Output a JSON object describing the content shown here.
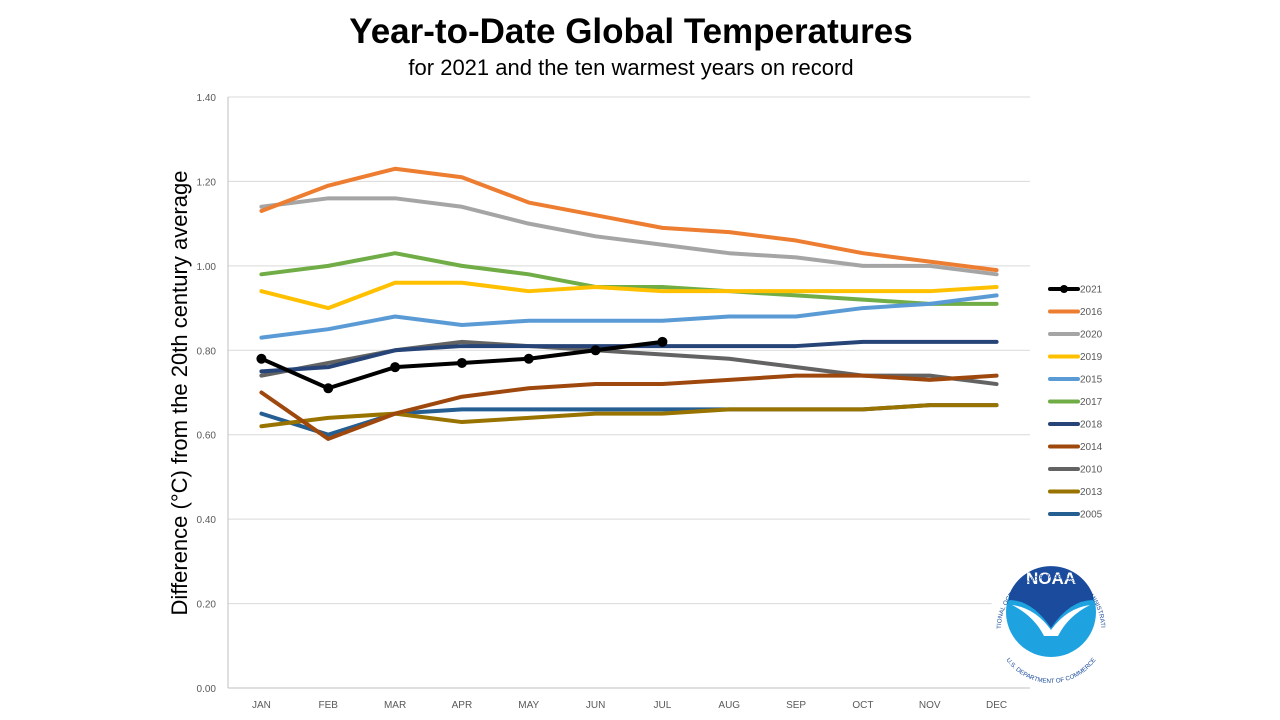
{
  "chart_data": {
    "type": "line",
    "title": "Year-to-Date Global Temperatures",
    "subtitle": "for 2021 and the ten warmest years on record",
    "xlabel": "",
    "ylabel": "Difference (°C) from the 20th century average",
    "ylim": [
      0,
      1.4
    ],
    "yticks": [
      "0.00",
      "0.20",
      "0.40",
      "0.60",
      "0.80",
      "1.00",
      "1.20",
      "1.40"
    ],
    "ytick_values": [
      0,
      0.2,
      0.4,
      0.6,
      0.8,
      1.0,
      1.2,
      1.4
    ],
    "grid": true,
    "legend_position": "right",
    "categories": [
      "JAN",
      "FEB",
      "MAR",
      "APR",
      "MAY",
      "JUN",
      "JUL",
      "AUG",
      "SEP",
      "OCT",
      "NOV",
      "DEC"
    ],
    "series": [
      {
        "name": "2021",
        "color": "#000000",
        "markers": true,
        "values": [
          0.78,
          0.71,
          0.76,
          0.77,
          0.78,
          0.8,
          0.82
        ]
      },
      {
        "name": "2016",
        "color": "#ED7D31",
        "values": [
          1.13,
          1.19,
          1.23,
          1.21,
          1.15,
          1.12,
          1.09,
          1.08,
          1.06,
          1.03,
          1.01,
          0.99
        ]
      },
      {
        "name": "2020",
        "color": "#A5A5A5",
        "values": [
          1.14,
          1.16,
          1.16,
          1.14,
          1.1,
          1.07,
          1.05,
          1.03,
          1.02,
          1.0,
          1.0,
          0.98
        ]
      },
      {
        "name": "2019",
        "color": "#FFC000",
        "values": [
          0.94,
          0.9,
          0.96,
          0.96,
          0.94,
          0.95,
          0.94,
          0.94,
          0.94,
          0.94,
          0.94,
          0.95
        ]
      },
      {
        "name": "2015",
        "color": "#5B9BD5",
        "values": [
          0.83,
          0.85,
          0.88,
          0.86,
          0.87,
          0.87,
          0.87,
          0.88,
          0.88,
          0.9,
          0.91,
          0.93
        ]
      },
      {
        "name": "2017",
        "color": "#70AD47",
        "values": [
          0.98,
          1.0,
          1.03,
          1.0,
          0.98,
          0.95,
          0.95,
          0.94,
          0.93,
          0.92,
          0.91,
          0.91
        ]
      },
      {
        "name": "2018",
        "color": "#264478",
        "values": [
          0.75,
          0.76,
          0.8,
          0.81,
          0.81,
          0.81,
          0.81,
          0.81,
          0.81,
          0.82,
          0.82,
          0.82
        ]
      },
      {
        "name": "2014",
        "color": "#9E480E",
        "values": [
          0.7,
          0.59,
          0.65,
          0.69,
          0.71,
          0.72,
          0.72,
          0.73,
          0.74,
          0.74,
          0.73,
          0.74
        ]
      },
      {
        "name": "2010",
        "color": "#636363",
        "values": [
          0.74,
          0.77,
          0.8,
          0.82,
          0.81,
          0.8,
          0.79,
          0.78,
          0.76,
          0.74,
          0.74,
          0.72
        ]
      },
      {
        "name": "2013",
        "color": "#997300",
        "values": [
          0.62,
          0.64,
          0.65,
          0.63,
          0.64,
          0.65,
          0.65,
          0.66,
          0.66,
          0.66,
          0.67,
          0.67
        ]
      },
      {
        "name": "2005",
        "color": "#255E91",
        "values": [
          0.65,
          0.6,
          0.65,
          0.66,
          0.66,
          0.66,
          0.66,
          0.66,
          0.66,
          0.66,
          0.67,
          0.67
        ]
      }
    ]
  },
  "logo": {
    "name": "NOAA",
    "ring_text_top": "NATIONAL OCEANIC AND ATMOSPHERIC ADMINISTRATION",
    "ring_text_bottom": "U.S. DEPARTMENT OF COMMERCE",
    "colors": {
      "dark": "#1A4B9C",
      "light": "#1FA3E0"
    }
  }
}
